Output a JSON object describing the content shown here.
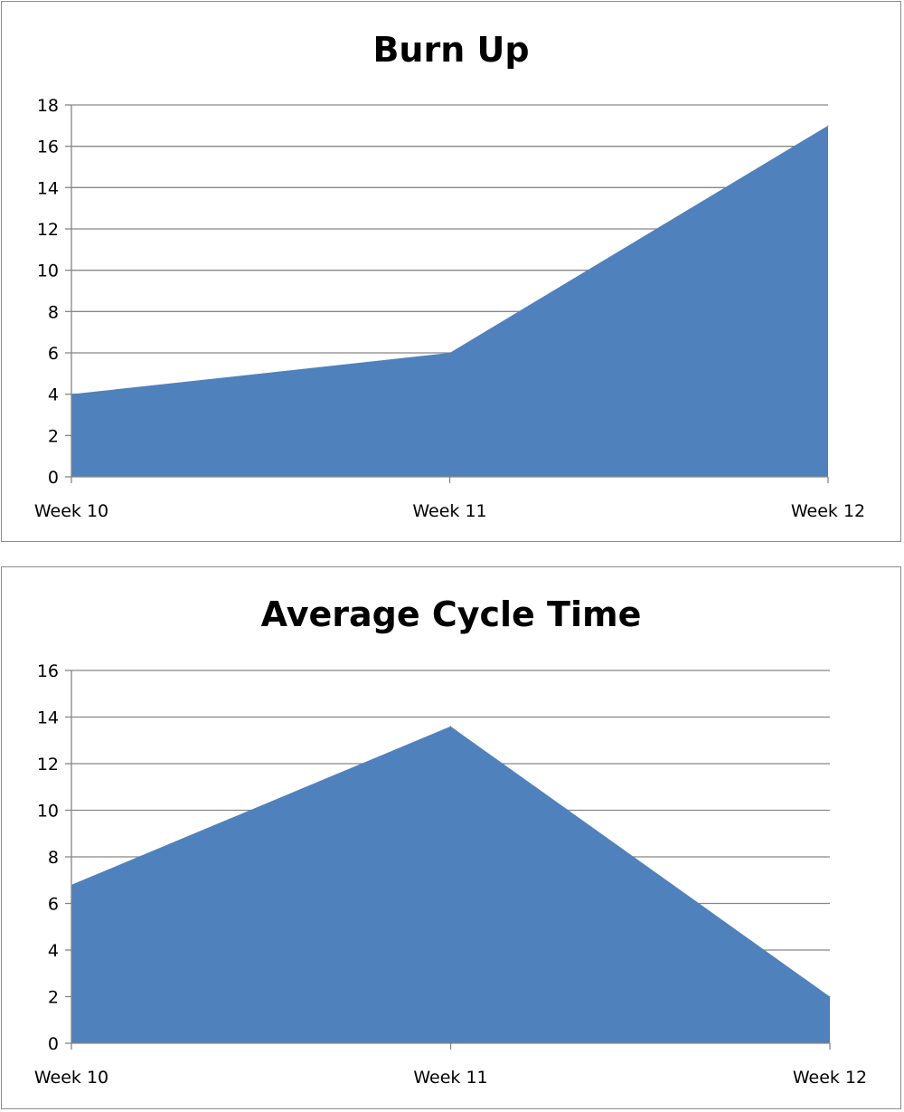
{
  "chart_data": [
    {
      "type": "area",
      "title": "Burn Up",
      "xlabel": "",
      "ylabel": "",
      "categories": [
        "Week 10",
        "Week 11",
        "Week 12"
      ],
      "values": [
        4,
        6,
        17
      ],
      "ylim": [
        0,
        18
      ],
      "yticks": [
        "0",
        "2",
        "4",
        "6",
        "8",
        "10",
        "12",
        "14",
        "16",
        "18"
      ],
      "grid": true,
      "legend": "none",
      "fill_color": "#4F81BD"
    },
    {
      "type": "area",
      "title": "Average Cycle Time",
      "xlabel": "",
      "ylabel": "",
      "categories": [
        "Week 10",
        "Week 11",
        "Week 12"
      ],
      "values": [
        6.8,
        13.6,
        2.0
      ],
      "ylim": [
        0,
        16
      ],
      "yticks": [
        "0",
        "2",
        "4",
        "6",
        "8",
        "10",
        "12",
        "14",
        "16"
      ],
      "grid": true,
      "legend": "none",
      "fill_color": "#4F81BD"
    }
  ]
}
